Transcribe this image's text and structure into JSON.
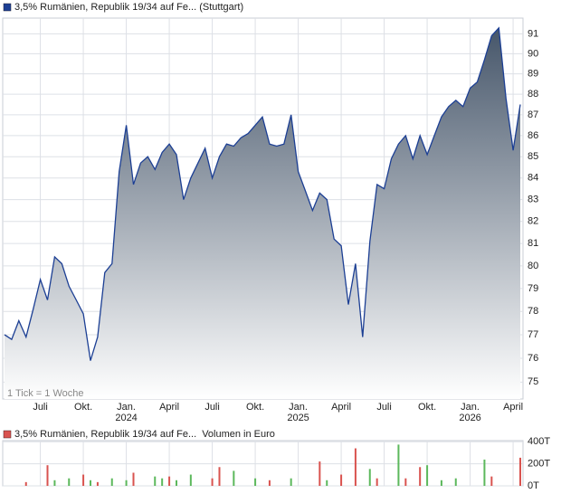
{
  "chart_data": [
    {
      "type": "area",
      "title": "3,5% Rumänien, Republik 19/34 auf Fe... (Stuttgart)",
      "annotation": "1 Tick = 1 Woche",
      "color": "#1c3f94",
      "log_scale": true,
      "grid": true,
      "categories": [
        null,
        null,
        null,
        null,
        null,
        "Juli",
        null,
        null,
        null,
        null,
        null,
        "Okt.",
        null,
        null,
        null,
        null,
        null,
        "Jan. 2024",
        null,
        null,
        null,
        null,
        null,
        "April",
        null,
        null,
        null,
        null,
        null,
        "Juli",
        null,
        null,
        null,
        null,
        null,
        "Okt.",
        null,
        null,
        null,
        null,
        null,
        "Jan. 2025",
        null,
        null,
        null,
        null,
        null,
        "April",
        null,
        null,
        null,
        null,
        null,
        "Juli",
        null,
        null,
        null,
        null,
        null,
        "Okt.",
        null,
        null,
        null,
        null,
        null,
        "Jan. 2026",
        null,
        null,
        null,
        null,
        null,
        "April",
        null
      ],
      "values": [
        77,
        76.8,
        77.6,
        76.9,
        78.1,
        79.4,
        78.5,
        80.4,
        80.1,
        79.1,
        78.5,
        77.9,
        75.9,
        76.9,
        79.7,
        80.1,
        84.3,
        86.5,
        83.7,
        84.7,
        85,
        84.4,
        85.2,
        85.6,
        85.1,
        83,
        84,
        84.7,
        85.4,
        84,
        85,
        85.6,
        85.5,
        85.9,
        86.1,
        86.5,
        86.9,
        85.6,
        85.5,
        85.6,
        87,
        84.3,
        83.4,
        82.5,
        83.3,
        83,
        81.2,
        80.9,
        78.3,
        80.1,
        76.9,
        81.1,
        83.7,
        83.5,
        84.9,
        85.6,
        86,
        84.9,
        86,
        85.1,
        86,
        86.9,
        87.4,
        87.7,
        87.4,
        88.3,
        88.6,
        89.7,
        90.9,
        91.3,
        87.8,
        85.3,
        87.5
      ],
      "ylim": [
        74.3,
        91.8
      ],
      "yticks": [
        75,
        76,
        77,
        78,
        79,
        80,
        81,
        82,
        83,
        84,
        85,
        86,
        87,
        88,
        89,
        90,
        91
      ]
    },
    {
      "type": "bar",
      "title": "3,5% Rumänien, Republik 19/34 auf Fe...",
      "subtitle": "Volumen in Euro",
      "color": "#d9534f",
      "values": [
        null,
        null,
        null,
        34000,
        null,
        null,
        187000,
        51000,
        null,
        68000,
        null,
        102000,
        51000,
        34000,
        null,
        68000,
        null,
        51000,
        119000,
        null,
        null,
        85000,
        68000,
        85000,
        51000,
        null,
        102000,
        null,
        null,
        68000,
        170000,
        null,
        136000,
        null,
        null,
        68000,
        null,
        51000,
        null,
        null,
        68000,
        null,
        null,
        null,
        221000,
        51000,
        null,
        102000,
        null,
        340000,
        null,
        153000,
        68000,
        null,
        null,
        374000,
        68000,
        null,
        170000,
        187000,
        null,
        51000,
        null,
        68000,
        null,
        null,
        null,
        238000,
        85000,
        null,
        null,
        null,
        255000
      ],
      "colors": [
        null,
        null,
        null,
        "#d9534f",
        null,
        null,
        "#d9534f",
        "#5cb85c",
        null,
        "#5cb85c",
        null,
        "#d9534f",
        "#5cb85c",
        "#d9534f",
        null,
        "#5cb85c",
        null,
        "#5cb85c",
        "#d9534f",
        null,
        null,
        "#5cb85c",
        "#5cb85c",
        "#d9534f",
        "#5cb85c",
        null,
        "#5cb85c",
        null,
        null,
        "#d9534f",
        "#d9534f",
        null,
        "#5cb85c",
        null,
        null,
        "#5cb85c",
        null,
        "#d9534f",
        null,
        null,
        "#5cb85c",
        null,
        null,
        null,
        "#d9534f",
        "#5cb85c",
        null,
        "#d9534f",
        null,
        "#d9534f",
        null,
        "#5cb85c",
        "#d9534f",
        null,
        null,
        "#5cb85c",
        "#d9534f",
        null,
        "#d9534f",
        "#5cb85c",
        null,
        "#5cb85c",
        null,
        "#5cb85c",
        null,
        null,
        null,
        "#5cb85c",
        "#d9534f",
        null,
        null,
        null,
        "#d9534f"
      ],
      "ylim": [
        0,
        410000
      ],
      "yticks": [
        {
          "value": 0,
          "label": "0T"
        },
        {
          "value": 200000,
          "label": "200T"
        },
        {
          "value": 400000,
          "label": "400T"
        }
      ]
    }
  ]
}
